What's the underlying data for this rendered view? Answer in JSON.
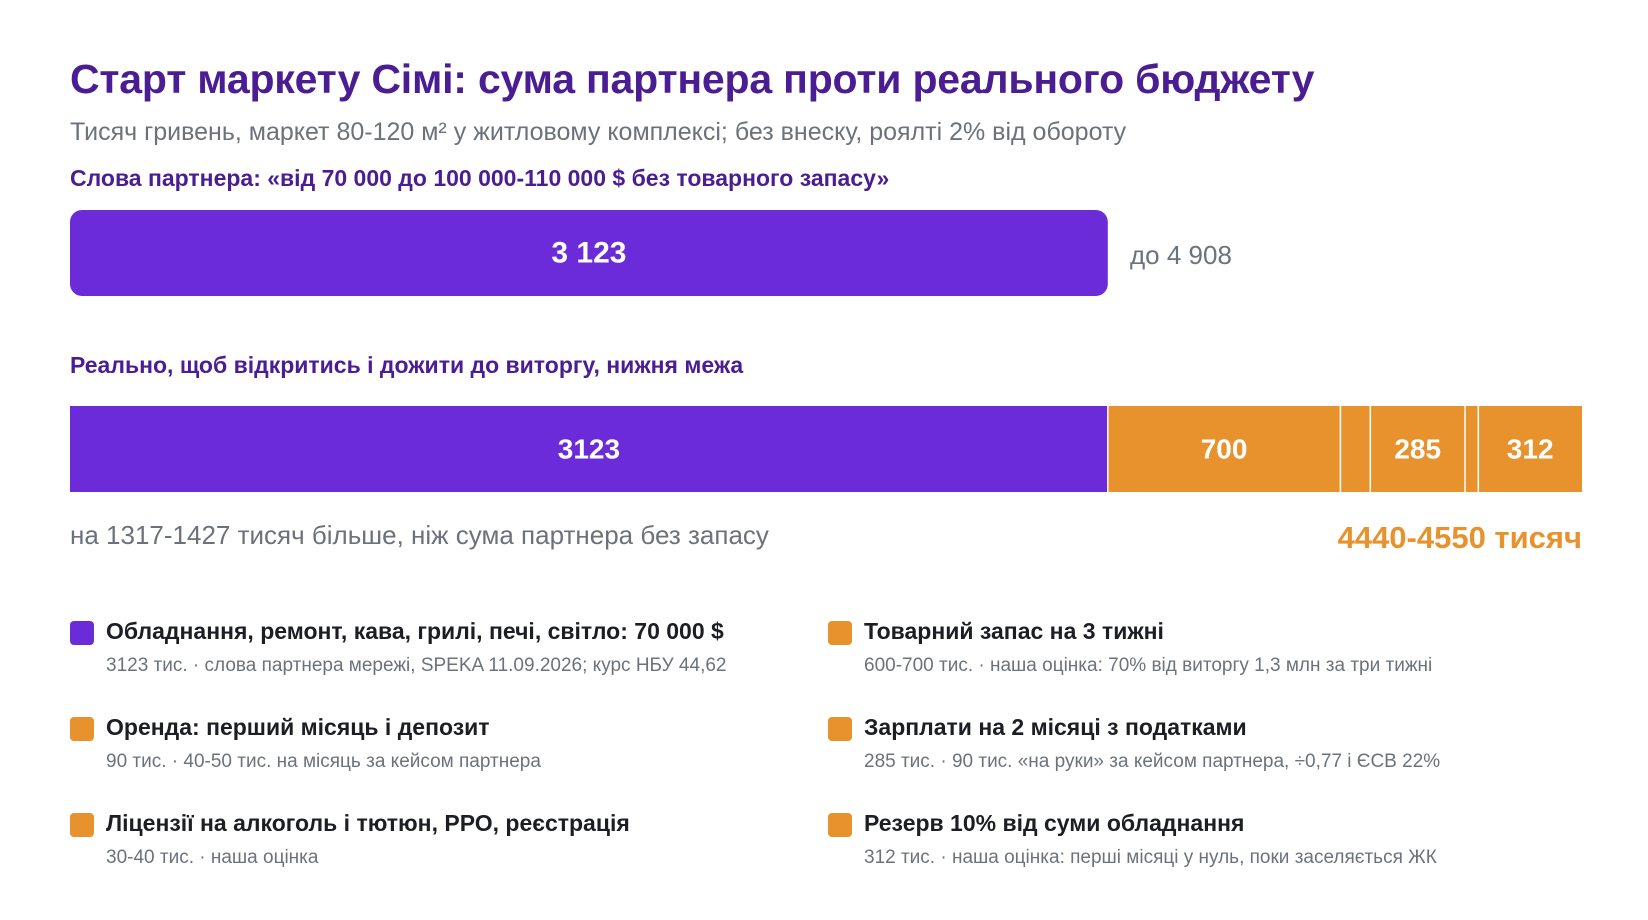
{
  "title": "Старт маркету Сімі: сума партнера проти реального бюджету",
  "subtitle": "Тисяч гривень, маркет 80-120 м² у житловому комплексі; без внеску, роялті 2% від обороту",
  "colors": {
    "primary": "#6c2bd9",
    "secondary": "#e8922e",
    "title": "#4b1d93",
    "muted": "#6c727c"
  },
  "chart_data": [
    {
      "type": "bar",
      "orientation": "horizontal",
      "title": "Слова партнера: «від 70 000 до 100 000-110 000 $ без товарного запасу»",
      "categories": [
        "Слова партнера"
      ],
      "series": [
        {
          "values": [
            3123
          ]
        }
      ],
      "value_labels": [
        "3 123"
      ],
      "range_label": "до 4 908",
      "range_max": 4908,
      "xlim": [
        0,
        4550
      ]
    },
    {
      "type": "bar",
      "stacked": true,
      "orientation": "horizontal",
      "title": "Реально, щоб відкритись і дожити до виторгу, нижня межа",
      "xlim": [
        0,
        4550
      ],
      "segments": [
        {
          "value": 3123,
          "label": "3123",
          "color": "#6c2bd9"
        },
        {
          "value": 700,
          "label": "700",
          "color": "#e8922e"
        },
        {
          "value": 90,
          "label": "",
          "color": "#e8922e"
        },
        {
          "value": 285,
          "label": "285",
          "color": "#e8922e"
        },
        {
          "value": 40,
          "label": "",
          "color": "#e8922e"
        },
        {
          "value": 312,
          "label": "312",
          "color": "#e8922e"
        }
      ],
      "note": "на 1317-1427 тисяч більше, ніж сума партнера без запасу",
      "total_label": "4440-4550 тисяч"
    }
  ],
  "legend": [
    {
      "title": "Обладнання, ремонт, кава, грилі, печі, світло: 70 000 $",
      "desc": "3123 тис. · слова партнера мережі, SPEKA 11.09.2026; курс НБУ 44,62",
      "color": "#6c2bd9"
    },
    {
      "title": "Оренда: перший місяць і депозит",
      "desc": "90 тис. · 40-50 тис. на місяць за кейсом партнера",
      "color": "#e8922e"
    },
    {
      "title": "Ліцензії на алкоголь і тютюн, РРО, реєстрація",
      "desc": "30-40 тис. · наша оцінка",
      "color": "#e8922e"
    },
    {
      "title": "Товарний запас на 3 тижні",
      "desc": "600-700 тис. · наша оцінка: 70% від виторгу 1,3 млн за три тижні",
      "color": "#e8922e"
    },
    {
      "title": "Зарплати на 2 місяці з податками",
      "desc": "285 тис. · 90 тис. «на руки» за кейсом партнера, ÷0,77 і ЄСВ 22%",
      "color": "#e8922e"
    },
    {
      "title": "Резерв 10% від суми обладнання",
      "desc": "312 тис. · наша оцінка: перші місяці у нуль, поки заселяється ЖК",
      "color": "#e8922e"
    }
  ]
}
